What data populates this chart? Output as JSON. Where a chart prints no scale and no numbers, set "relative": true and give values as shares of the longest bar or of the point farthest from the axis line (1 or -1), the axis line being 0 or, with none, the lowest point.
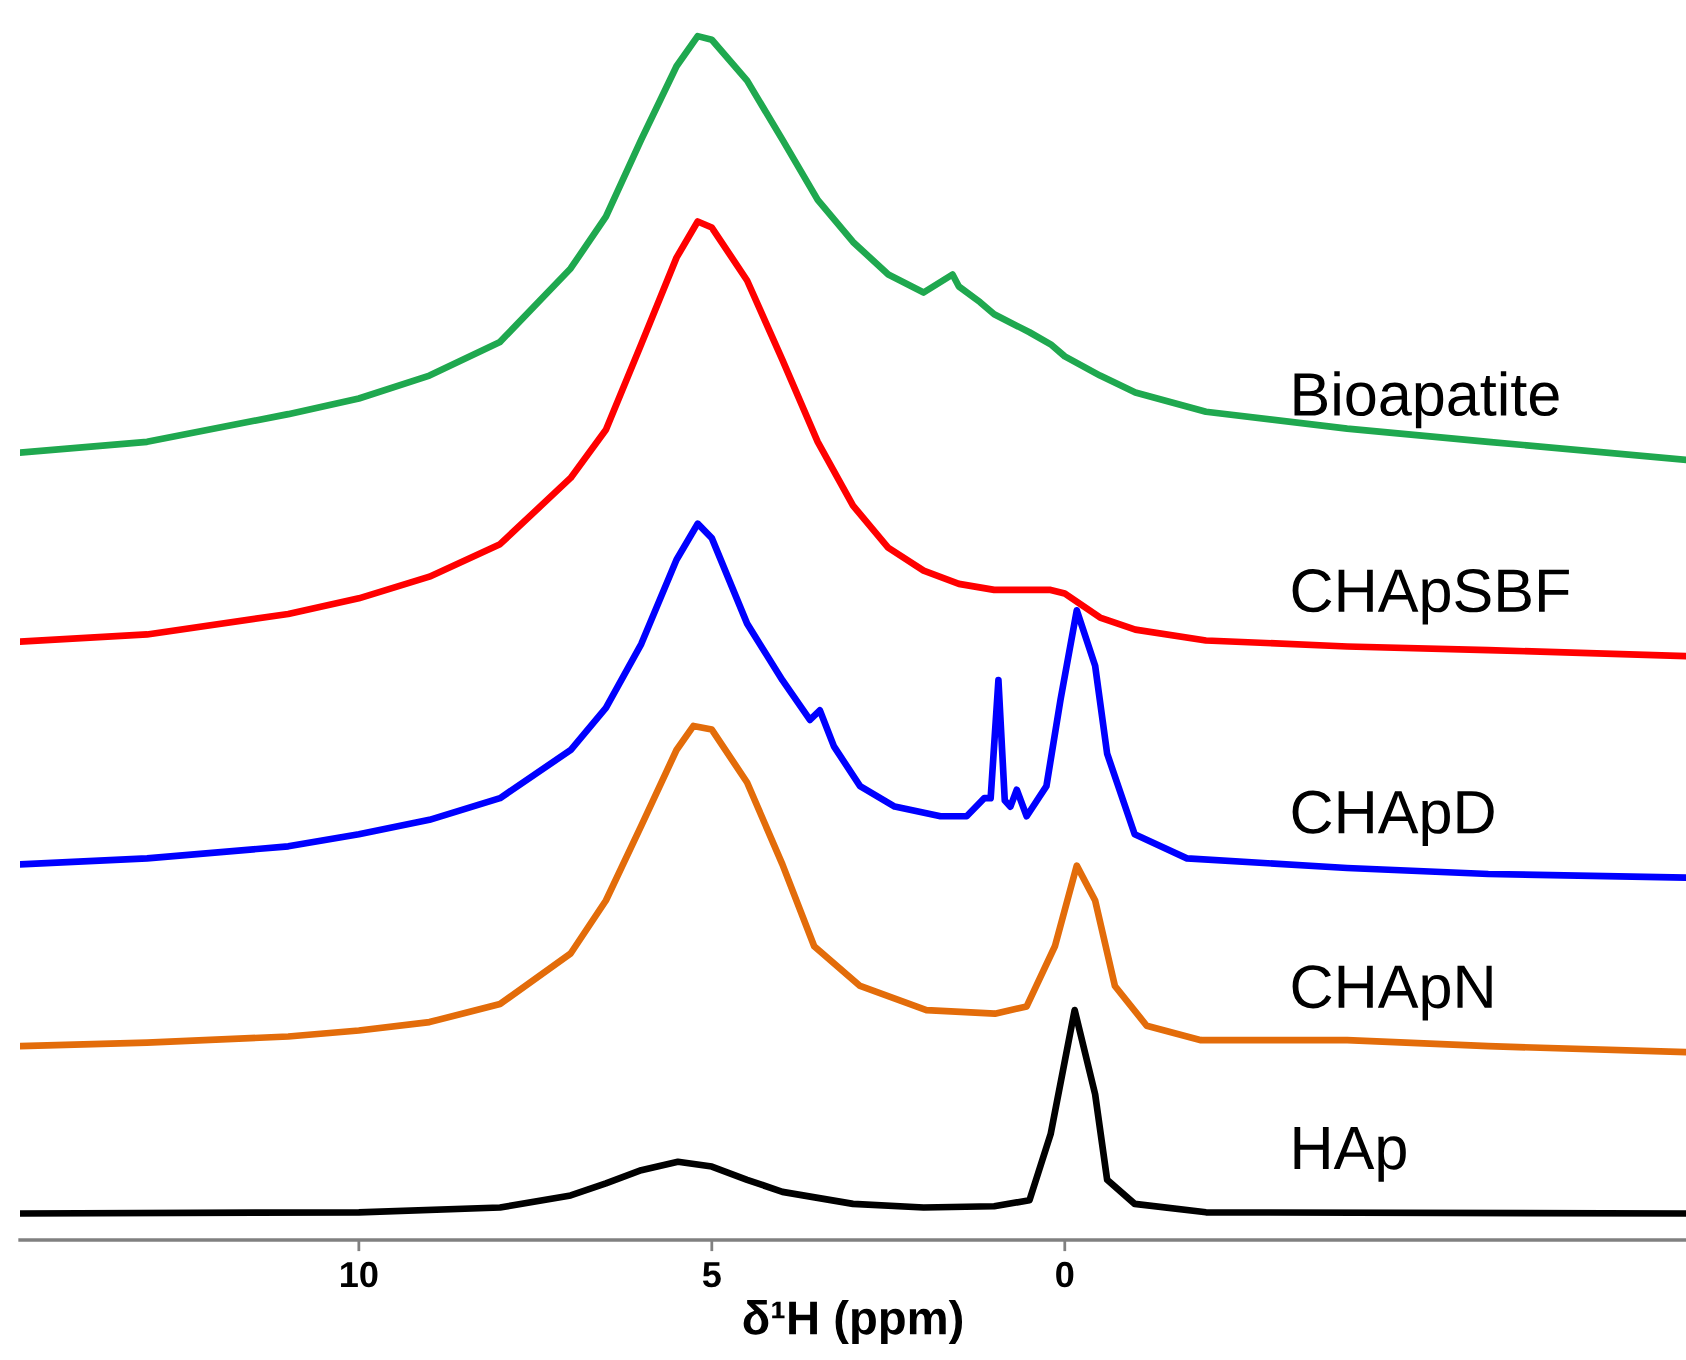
{
  "chart_data": {
    "type": "line",
    "relative": true,
    "xlabel": "δ¹H (ppm)",
    "xlim": [
      14.8,
      -8.8
    ],
    "xticks": [
      10,
      5,
      0
    ],
    "grid": false,
    "legend": false,
    "tick_labels": "x",
    "line_style": "solid",
    "marker": "none",
    "series": [
      {
        "name": "Bioapatite",
        "color": "#1fa84f",
        "x": [
          14.8,
          13,
          11,
          10,
          9,
          8,
          7,
          6.5,
          6,
          5.5,
          5.2,
          5,
          4.5,
          4,
          3.5,
          3,
          2.5,
          2,
          1.59,
          1.5,
          1.2,
          1,
          0.5,
          0.2,
          0,
          -0.5,
          -1,
          -2,
          -4,
          -6,
          -8.8
        ],
        "values": [
          0.654,
          0.663,
          0.686,
          0.699,
          0.718,
          0.746,
          0.807,
          0.85,
          0.914,
          0.975,
          1,
          0.997,
          0.963,
          0.914,
          0.864,
          0.829,
          0.802,
          0.787,
          0.802,
          0.792,
          0.779,
          0.769,
          0.754,
          0.744,
          0.734,
          0.718,
          0.704,
          0.688,
          0.674,
          0.663,
          0.648
        ]
      },
      {
        "name": "CHApSBF",
        "color": "#ff0000",
        "x": [
          14.8,
          13,
          11,
          10,
          9,
          8,
          7,
          6.5,
          6,
          5.5,
          5.2,
          5,
          4.5,
          4,
          3.5,
          3,
          2.5,
          2,
          1.5,
          1,
          0.5,
          0.2,
          0,
          -0.5,
          -1,
          -2,
          -4,
          -6,
          -8.8
        ],
        "values": [
          0.497,
          0.503,
          0.52,
          0.533,
          0.551,
          0.578,
          0.633,
          0.673,
          0.744,
          0.816,
          0.846,
          0.841,
          0.797,
          0.731,
          0.663,
          0.61,
          0.575,
          0.556,
          0.545,
          0.54,
          0.54,
          0.54,
          0.537,
          0.517,
          0.507,
          0.498,
          0.493,
          0.49,
          0.485
        ]
      },
      {
        "name": "CHApD",
        "color": "#0000ff",
        "x": [
          14.8,
          13,
          11,
          10,
          9,
          8,
          7,
          6.5,
          6,
          5.5,
          5.2,
          5,
          4.5,
          4,
          3.61,
          3.47,
          3.27,
          2.9,
          2.41,
          1.76,
          1.39,
          1.14,
          1.05,
          0.94,
          0.85,
          0.77,
          0.68,
          0.54,
          0.26,
          0.06,
          -0.17,
          -0.43,
          -0.6,
          -0.99,
          -1.73,
          -4,
          -6,
          -8.8
        ],
        "values": [
          0.312,
          0.317,
          0.327,
          0.337,
          0.349,
          0.367,
          0.407,
          0.442,
          0.495,
          0.565,
          0.595,
          0.583,
          0.512,
          0.465,
          0.432,
          0.44,
          0.41,
          0.377,
          0.36,
          0.352,
          0.352,
          0.367,
          0.367,
          0.465,
          0.365,
          0.36,
          0.374,
          0.352,
          0.377,
          0.449,
          0.523,
          0.477,
          0.404,
          0.337,
          0.317,
          0.309,
          0.304,
          0.301
        ]
      },
      {
        "name": "CHApN",
        "color": "#e36c0a",
        "x": [
          14.8,
          13,
          11,
          10,
          9,
          8,
          7,
          6.5,
          6,
          5.5,
          5.26,
          5,
          4.5,
          4,
          3.55,
          2.9,
          1.96,
          0.99,
          0.54,
          0.14,
          -0.17,
          -0.43,
          -0.71,
          -1.16,
          -1.93,
          -4,
          -6,
          -8.8
        ],
        "values": [
          0.161,
          0.164,
          0.169,
          0.174,
          0.181,
          0.196,
          0.238,
          0.282,
          0.344,
          0.407,
          0.427,
          0.424,
          0.38,
          0.312,
          0.244,
          0.211,
          0.191,
          0.188,
          0.194,
          0.244,
          0.311,
          0.282,
          0.211,
          0.178,
          0.166,
          0.166,
          0.161,
          0.156
        ]
      },
      {
        "name": "HAp",
        "color": "#000000",
        "x": [
          14.8,
          10,
          8,
          7,
          6.5,
          6,
          5.48,
          5,
          4.5,
          4,
          3,
          2,
          1,
          0.5,
          0.2,
          -0.14,
          -0.43,
          -0.6,
          -0.99,
          -2,
          -8.8
        ],
        "values": [
          0.022,
          0.023,
          0.027,
          0.037,
          0.047,
          0.058,
          0.065,
          0.061,
          0.05,
          0.04,
          0.03,
          0.027,
          0.028,
          0.033,
          0.088,
          0.191,
          0.121,
          0.05,
          0.03,
          0.023,
          0.022
        ]
      }
    ]
  }
}
